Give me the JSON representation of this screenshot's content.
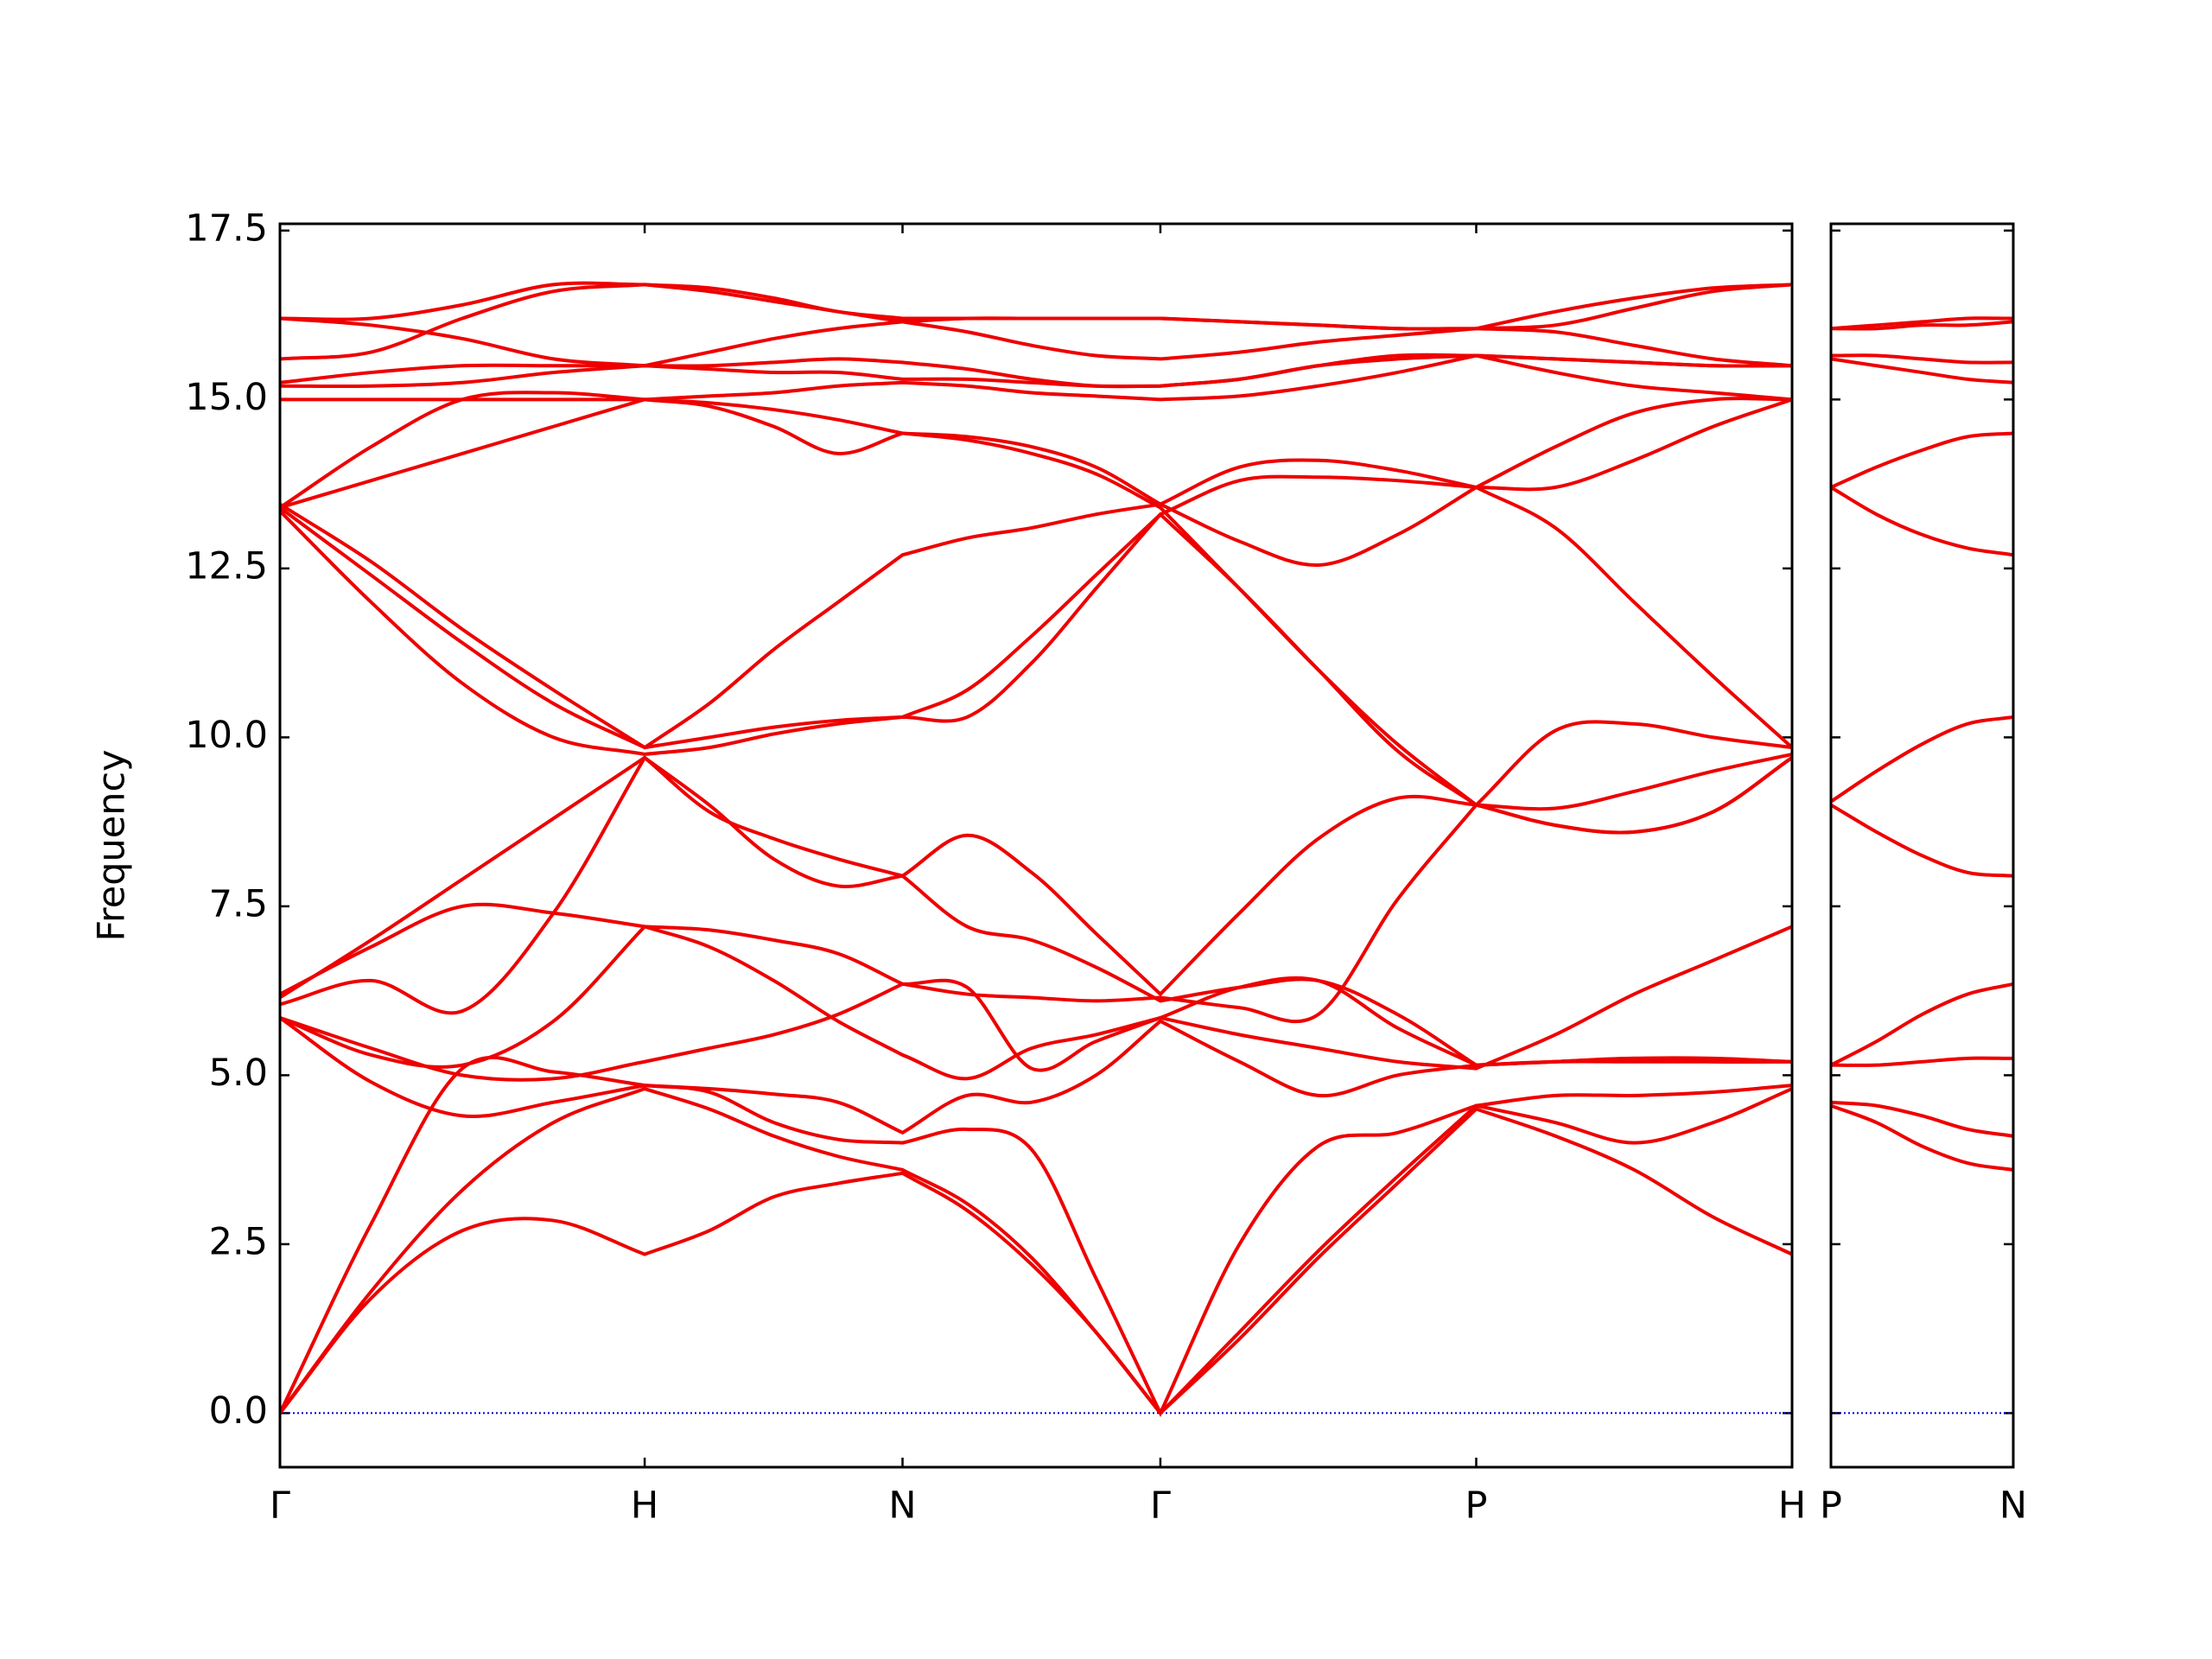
{
  "chart_data": [
    {
      "type": "line",
      "ylabel": "Frequency",
      "color": "#ee0000",
      "x": [
        0,
        0.25,
        0.5,
        0.75,
        1,
        1.177,
        1.354,
        1.53,
        1.707,
        1.884,
        2.061,
        2.237,
        2.414,
        2.631,
        2.847,
        3.064,
        3.28,
        3.497,
        3.713,
        3.93,
        4.146
      ],
      "xlim": [
        0,
        4.146
      ],
      "xticks": [
        {
          "value": 0,
          "label": "Γ"
        },
        {
          "value": 1,
          "label": "H"
        },
        {
          "value": 1.707,
          "label": "N"
        },
        {
          "value": 2.414,
          "label": "Γ"
        },
        {
          "value": 3.28,
          "label": "P"
        },
        {
          "value": 4.146,
          "label": "H"
        }
      ],
      "ylim": [
        -0.8,
        17.6
      ],
      "yticks": [
        {
          "value": 0,
          "label": "0.0"
        },
        2.5,
        {
          "value": 5,
          "label": "5.0"
        },
        7.5,
        {
          "value": 10,
          "label": "10.0"
        },
        12.5,
        {
          "value": 15,
          "label": "15.0"
        },
        17.5
      ],
      "series": [
        {
          "values": [
            0,
            1.7,
            2.7,
            2.85,
            2.35,
            2.7,
            3.2,
            3.4,
            3.55,
            3.0,
            2.2,
            1.2,
            0,
            1.1,
            2.3,
            3.4,
            4.5,
            4.1,
            3.6,
            2.9,
            2.35
          ]
        },
        {
          "values": [
            0,
            1.8,
            3.3,
            4.3,
            4.8,
            4.5,
            4.1,
            3.8,
            3.6,
            3.1,
            2.3,
            1.2,
            0,
            1.2,
            2.4,
            3.5,
            4.55,
            4.3,
            4.0,
            4.3,
            4.8
          ]
        },
        {
          "values": [
            0,
            2.8,
            5.1,
            5.05,
            4.85,
            4.75,
            4.3,
            4.05,
            4.0,
            4.2,
            3.9,
            2.0,
            0,
            2.5,
            3.95,
            4.15,
            4.55,
            4.7,
            4.7,
            4.75,
            4.85
          ]
        },
        {
          "values": [
            5.85,
            4.9,
            4.4,
            4.6,
            4.85,
            4.8,
            4.72,
            4.6,
            4.15,
            4.7,
            4.6,
            5.0,
            5.8,
            5.2,
            4.7,
            5.0,
            5.15,
            5.2,
            5.25,
            5.25,
            5.2
          ]
        },
        {
          "values": [
            5.85,
            5.3,
            5.15,
            5.8,
            7.2,
            6.9,
            6.4,
            5.8,
            5.3,
            4.95,
            5.4,
            5.6,
            5.85,
            5.6,
            5.4,
            5.2,
            5.1,
            5.6,
            6.2,
            6.7,
            7.2
          ]
        },
        {
          "values": [
            5.85,
            5.4,
            5.0,
            4.95,
            5.2,
            5.4,
            5.6,
            5.9,
            6.35,
            6.3,
            5.1,
            5.5,
            5.85,
            6.3,
            6.4,
            5.7,
            5.15,
            5.2,
            5.25,
            5.2,
            5.2
          ]
        },
        {
          "values": [
            6.05,
            6.4,
            5.95,
            7.4,
            9.7,
            8.9,
            8.5,
            8.2,
            7.95,
            8.55,
            8.0,
            7.1,
            6.2,
            7.4,
            8.5,
            9.1,
            9.0,
            8.7,
            8.6,
            8.9,
            9.7
          ]
        },
        {
          "values": [
            6.2,
            6.9,
            7.5,
            7.4,
            7.2,
            7.15,
            7.0,
            6.8,
            6.35,
            6.2,
            6.15,
            6.1,
            6.15,
            6.0,
            5.9,
            7.6,
            9.0,
            8.95,
            9.2,
            9.5,
            9.75
          ]
        },
        {
          "values": [
            6.15,
            7.0,
            7.9,
            8.8,
            9.7,
            9.0,
            8.2,
            7.8,
            7.95,
            7.2,
            7.0,
            6.6,
            6.1,
            6.3,
            6.4,
            5.9,
            5.15,
            5.2,
            5.2,
            5.2,
            5.2
          ]
        },
        {
          "values": [
            13.45,
            12.6,
            11.6,
            10.7,
            9.85,
            10.0,
            10.15,
            10.25,
            10.3,
            10.7,
            11.5,
            12.4,
            13.3,
            13.8,
            13.85,
            13.8,
            13.7,
            13.7,
            14.1,
            14.6,
            15.0
          ]
        },
        {
          "values": [
            13.4,
            12.4,
            11.4,
            10.5,
            9.85,
            10.5,
            11.3,
            12.0,
            12.7,
            12.95,
            13.1,
            13.3,
            13.45,
            14.0,
            14.1,
            13.95,
            13.7,
            14.3,
            14.8,
            15.0,
            15.0
          ]
        },
        {
          "values": [
            13.35,
            12.0,
            10.8,
            10.0,
            9.75,
            9.85,
            10.05,
            10.2,
            10.3,
            10.3,
            11.1,
            12.2,
            13.3,
            12.2,
            11.0,
            9.8,
            9.0,
            10.1,
            10.2,
            10.0,
            9.85
          ]
        },
        {
          "values": [
            13.4,
            14.3,
            15.0,
            15.1,
            15.0,
            14.9,
            14.6,
            14.2,
            14.5,
            14.45,
            14.3,
            14.0,
            13.45,
            12.9,
            12.55,
            13.0,
            13.7,
            13.1,
            12.0,
            10.9,
            9.85
          ]
        },
        {
          "values": [
            13.4,
            13.8,
            14.2,
            14.6,
            15.0,
            14.95,
            14.85,
            14.7,
            14.5,
            14.4,
            14.2,
            13.9,
            13.4,
            12.2,
            11.0,
            9.9,
            9.0,
            8.7,
            8.6,
            8.9,
            9.7
          ]
        },
        {
          "values": [
            15.0,
            15.0,
            15.0,
            15.0,
            15.0,
            15.05,
            15.1,
            15.2,
            15.25,
            15.2,
            15.1,
            15.05,
            15.0,
            15.05,
            15.2,
            15.4,
            15.65,
            15.6,
            15.55,
            15.5,
            15.5
          ]
        },
        {
          "values": [
            15.2,
            15.2,
            15.25,
            15.4,
            15.5,
            15.5,
            15.55,
            15.6,
            15.55,
            15.45,
            15.3,
            15.2,
            15.2,
            15.3,
            15.5,
            15.65,
            15.65,
            15.4,
            15.2,
            15.1,
            15.0
          ]
        },
        {
          "values": [
            15.6,
            15.7,
            16.2,
            16.6,
            16.7,
            16.6,
            16.45,
            16.3,
            16.15,
            16.2,
            16.2,
            16.2,
            16.2,
            16.15,
            16.1,
            16.05,
            16.05,
            16.3,
            16.5,
            16.65,
            16.7
          ]
        },
        {
          "values": [
            16.2,
            16.2,
            16.4,
            16.7,
            16.7,
            16.65,
            16.5,
            16.3,
            16.2,
            16.2,
            16.2,
            16.2,
            16.2,
            16.15,
            16.1,
            16.05,
            16.05,
            16.1,
            16.35,
            16.6,
            16.7
          ]
        },
        {
          "values": [
            16.2,
            16.1,
            15.9,
            15.6,
            15.5,
            15.7,
            15.9,
            16.05,
            16.15,
            16.0,
            15.8,
            15.65,
            15.6,
            15.7,
            15.85,
            15.95,
            16.05,
            16.0,
            15.8,
            15.6,
            15.5
          ]
        },
        {
          "values": [
            15.25,
            15.4,
            15.5,
            15.5,
            15.5,
            15.45,
            15.4,
            15.4,
            15.3,
            15.3,
            15.25,
            15.2,
            15.2,
            15.3,
            15.5,
            15.6,
            15.65,
            15.6,
            15.55,
            15.5,
            15.5
          ]
        }
      ]
    },
    {
      "type": "line",
      "color": "#ee0000",
      "x": [
        0,
        0.125,
        0.25,
        0.375,
        0.5
      ],
      "xlim": [
        0,
        0.5
      ],
      "xticks": [
        {
          "value": 0,
          "label": "P"
        },
        {
          "value": 0.5,
          "label": "N"
        }
      ],
      "ylim": [
        -0.8,
        17.6
      ],
      "series": [
        {
          "values": [
            4.55,
            4.3,
            3.95,
            3.7,
            3.6
          ]
        },
        {
          "values": [
            4.6,
            4.55,
            4.4,
            4.2,
            4.1
          ]
        },
        {
          "values": [
            5.15,
            5.15,
            5.2,
            5.25,
            5.25
          ]
        },
        {
          "values": [
            5.15,
            5.5,
            5.9,
            6.2,
            6.35
          ]
        },
        {
          "values": [
            9.0,
            8.6,
            8.25,
            8.0,
            7.95
          ]
        },
        {
          "values": [
            9.05,
            9.5,
            9.9,
            10.2,
            10.3
          ]
        },
        {
          "values": [
            13.7,
            13.3,
            13.0,
            12.8,
            12.7
          ]
        },
        {
          "values": [
            13.7,
            14.0,
            14.25,
            14.45,
            14.5
          ]
        },
        {
          "values": [
            15.6,
            15.5,
            15.4,
            15.3,
            15.25
          ]
        },
        {
          "values": [
            15.65,
            15.65,
            15.6,
            15.55,
            15.55
          ]
        },
        {
          "values": [
            16.05,
            16.1,
            16.15,
            16.2,
            16.2
          ]
        },
        {
          "values": [
            16.05,
            16.05,
            16.1,
            16.1,
            16.15
          ]
        }
      ]
    }
  ]
}
